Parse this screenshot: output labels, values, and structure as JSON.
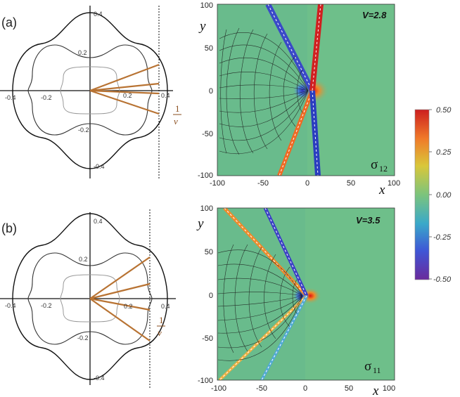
{
  "panels": [
    {
      "label": "(a)",
      "polar_ticks": {
        "x": [
          "-0.4",
          "-0.2",
          "0.2",
          "0.4"
        ],
        "y": [
          "0.4",
          "0.2",
          "-0.2",
          "-0.4"
        ]
      },
      "inv_v_num": "1",
      "inv_v_den": "v",
      "field": {
        "title": "V=2.8",
        "stress_symbol": "σ",
        "stress_index": "12",
        "x_ticks": [
          "-100",
          "-50",
          "0",
          "50",
          "100"
        ],
        "y_ticks": [
          "100",
          "50",
          "0",
          "-50",
          "-100"
        ],
        "x_label": "x",
        "y_label": "y"
      }
    },
    {
      "label": "(b)",
      "polar_ticks": {
        "x": [
          "-0.4",
          "-0.2",
          "0.2",
          "0.4"
        ],
        "y": [
          "0.4",
          "0.2",
          "-0.2",
          "-0.4"
        ]
      },
      "inv_v_num": "1",
      "inv_v_den": "v",
      "field": {
        "title": "V=3.5",
        "stress_symbol": "σ",
        "stress_index": "11",
        "x_ticks": [
          "-100",
          "-50",
          "0",
          "50",
          "100"
        ],
        "y_ticks": [
          "100",
          "50",
          "0",
          "-50",
          "-100"
        ],
        "x_label": "x",
        "y_label": "y"
      }
    }
  ],
  "colorbar": {
    "ticks": [
      "0.50",
      "0.25",
      "0.00",
      "-0.25",
      "-0.50"
    ],
    "colors": [
      "#cc1f1f",
      "#f07a2a",
      "#d9c73a",
      "#7cc47c",
      "#3aa9c9",
      "#3f56d6",
      "#6a2a9c"
    ]
  }
}
